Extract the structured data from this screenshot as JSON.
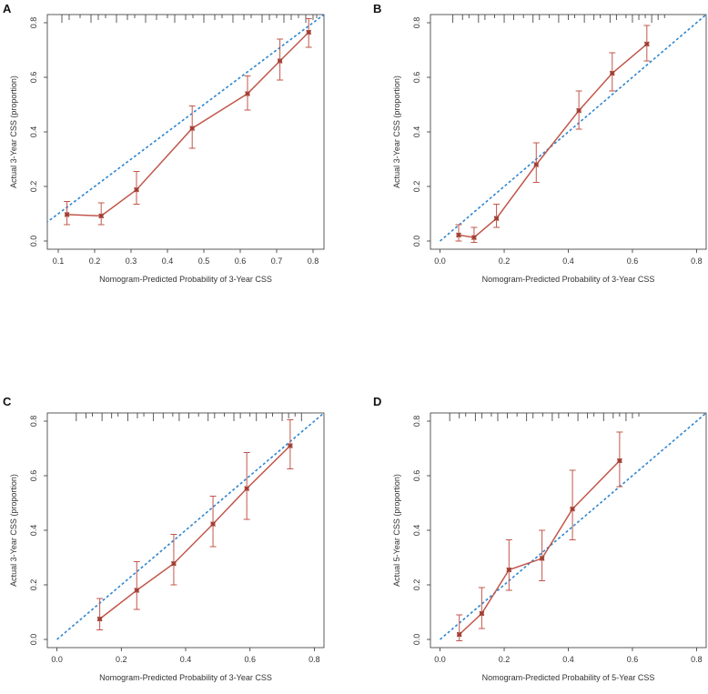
{
  "figure": {
    "panels_count": 4
  },
  "colors": {
    "calibration": "#c0574a",
    "ideal": "#2f86d0",
    "axis": "#333333",
    "rug": "#333333"
  },
  "chart_data": [
    {
      "panel": "A",
      "type": "line",
      "xlabel": "Nomogram-Predicted Probability of 3-Year CSS",
      "ylabel": "Actual 3-Year CSS (proportion)",
      "xlim": [
        0.07,
        0.83
      ],
      "ylim": [
        -0.03,
        0.83
      ],
      "xticks": [
        0.1,
        0.2,
        0.3,
        0.4,
        0.5,
        0.6,
        0.7,
        0.8
      ],
      "xtick_labels": [
        "0.1",
        "0.2",
        "0.3",
        "0.4",
        "0.5",
        "0.6",
        "0.7",
        "0.8"
      ],
      "yticks": [
        0.0,
        0.2,
        0.4,
        0.6,
        0.8
      ],
      "ytick_labels": [
        "0.0",
        "0.2",
        "0.4",
        "0.6",
        "0.8"
      ],
      "x": [
        0.124,
        0.218,
        0.315,
        0.468,
        0.62,
        0.709,
        0.788
      ],
      "y": [
        0.097,
        0.092,
        0.188,
        0.413,
        0.54,
        0.66,
        0.765
      ],
      "err_low": [
        0.06,
        0.06,
        0.135,
        0.34,
        0.48,
        0.59,
        0.71
      ],
      "err_high": [
        0.145,
        0.14,
        0.255,
        0.495,
        0.605,
        0.74,
        0.815
      ],
      "ideal_line": [
        [
          0,
          0
        ],
        [
          1,
          1
        ]
      ],
      "rug": [
        0.11,
        0.13,
        0.16,
        0.19,
        0.21,
        0.23,
        0.26,
        0.29,
        0.31,
        0.34,
        0.37,
        0.4,
        0.42,
        0.45,
        0.47,
        0.5,
        0.53,
        0.55,
        0.58,
        0.61,
        0.63,
        0.66,
        0.68,
        0.7,
        0.72,
        0.74,
        0.76,
        0.78,
        0.8,
        0.81
      ]
    },
    {
      "panel": "B",
      "type": "line",
      "xlabel": "Nomogram-Predicted Probability of 3-Year CSS",
      "ylabel": "Actual 3-Year CSS (proportion)",
      "xlim": [
        -0.03,
        0.83
      ],
      "ylim": [
        -0.03,
        0.83
      ],
      "xticks": [
        0.0,
        0.2,
        0.4,
        0.6,
        0.8
      ],
      "xtick_labels": [
        "0.0",
        "0.2",
        "0.4",
        "0.6",
        "0.8"
      ],
      "yticks": [
        0.0,
        0.2,
        0.4,
        0.6,
        0.8
      ],
      "ytick_labels": [
        "0.0",
        "0.2",
        "0.4",
        "0.6",
        "0.8"
      ],
      "x": [
        0.058,
        0.106,
        0.176,
        0.3,
        0.433,
        0.537,
        0.645
      ],
      "y": [
        0.022,
        0.013,
        0.083,
        0.28,
        0.478,
        0.615,
        0.722
      ],
      "err_low": [
        0.0,
        -0.005,
        0.05,
        0.215,
        0.41,
        0.55,
        0.66
      ],
      "err_high": [
        0.06,
        0.05,
        0.135,
        0.36,
        0.55,
        0.69,
        0.79
      ],
      "ideal_line": [
        [
          0,
          0
        ],
        [
          1,
          1
        ]
      ],
      "rug": [
        0.04,
        0.07,
        0.09,
        0.12,
        0.14,
        0.17,
        0.2,
        0.23,
        0.26,
        0.29,
        0.31,
        0.34,
        0.37,
        0.4,
        0.42,
        0.45,
        0.48,
        0.5,
        0.53,
        0.55,
        0.58,
        0.6,
        0.62,
        0.64,
        0.66,
        0.68,
        0.7
      ]
    },
    {
      "panel": "C",
      "type": "line",
      "xlabel": "Nomogram-Predicted Probability of 3-Year CSS",
      "ylabel": "Actual 3-Year CSS (proportion)",
      "xlim": [
        -0.03,
        0.83
      ],
      "ylim": [
        -0.03,
        0.83
      ],
      "xticks": [
        0.0,
        0.2,
        0.4,
        0.6,
        0.8
      ],
      "xtick_labels": [
        "0.0",
        "0.2",
        "0.4",
        "0.6",
        "0.8"
      ],
      "yticks": [
        0.0,
        0.2,
        0.4,
        0.6,
        0.8
      ],
      "ytick_labels": [
        "0.0",
        "0.2",
        "0.4",
        "0.6",
        "0.8"
      ],
      "x": [
        0.133,
        0.248,
        0.363,
        0.485,
        0.59,
        0.725
      ],
      "y": [
        0.075,
        0.18,
        0.278,
        0.423,
        0.553,
        0.71
      ],
      "err_low": [
        0.035,
        0.11,
        0.2,
        0.34,
        0.44,
        0.625
      ],
      "err_high": [
        0.15,
        0.285,
        0.385,
        0.525,
        0.685,
        0.805
      ],
      "ideal_line": [
        [
          0,
          0
        ],
        [
          1,
          1
        ]
      ],
      "rug": [
        0.06,
        0.09,
        0.11,
        0.14,
        0.17,
        0.19,
        0.22,
        0.25,
        0.27,
        0.3,
        0.33,
        0.36,
        0.38,
        0.41,
        0.44,
        0.47,
        0.49,
        0.52,
        0.55,
        0.57,
        0.6,
        0.62,
        0.65,
        0.67,
        0.7,
        0.72,
        0.74,
        0.76
      ]
    },
    {
      "panel": "D",
      "type": "line",
      "xlabel": "Nomogram-Predicted Probability of 5-Year CSS",
      "ylabel": "Actual 5-Year CSS (proportion)",
      "xlim": [
        -0.03,
        0.83
      ],
      "ylim": [
        -0.03,
        0.83
      ],
      "xticks": [
        0.0,
        0.2,
        0.4,
        0.6,
        0.8
      ],
      "xtick_labels": [
        "0.0",
        "0.2",
        "0.4",
        "0.6",
        "0.8"
      ],
      "yticks": [
        0.0,
        0.2,
        0.4,
        0.6,
        0.8
      ],
      "ytick_labels": [
        "0.0",
        "0.2",
        "0.4",
        "0.6",
        "0.8"
      ],
      "x": [
        0.06,
        0.13,
        0.215,
        0.318,
        0.413,
        0.56
      ],
      "y": [
        0.018,
        0.095,
        0.255,
        0.297,
        0.478,
        0.655
      ],
      "err_low": [
        -0.005,
        0.04,
        0.18,
        0.215,
        0.365,
        0.56
      ],
      "err_high": [
        0.09,
        0.19,
        0.365,
        0.4,
        0.62,
        0.76
      ],
      "ideal_line": [
        [
          0,
          0
        ],
        [
          1,
          1
        ]
      ],
      "rug": [
        0.03,
        0.06,
        0.08,
        0.11,
        0.13,
        0.16,
        0.18,
        0.21,
        0.24,
        0.27,
        0.29,
        0.32,
        0.35,
        0.37,
        0.4,
        0.43,
        0.46,
        0.48,
        0.51,
        0.54,
        0.56,
        0.58,
        0.6,
        0.62
      ]
    }
  ]
}
